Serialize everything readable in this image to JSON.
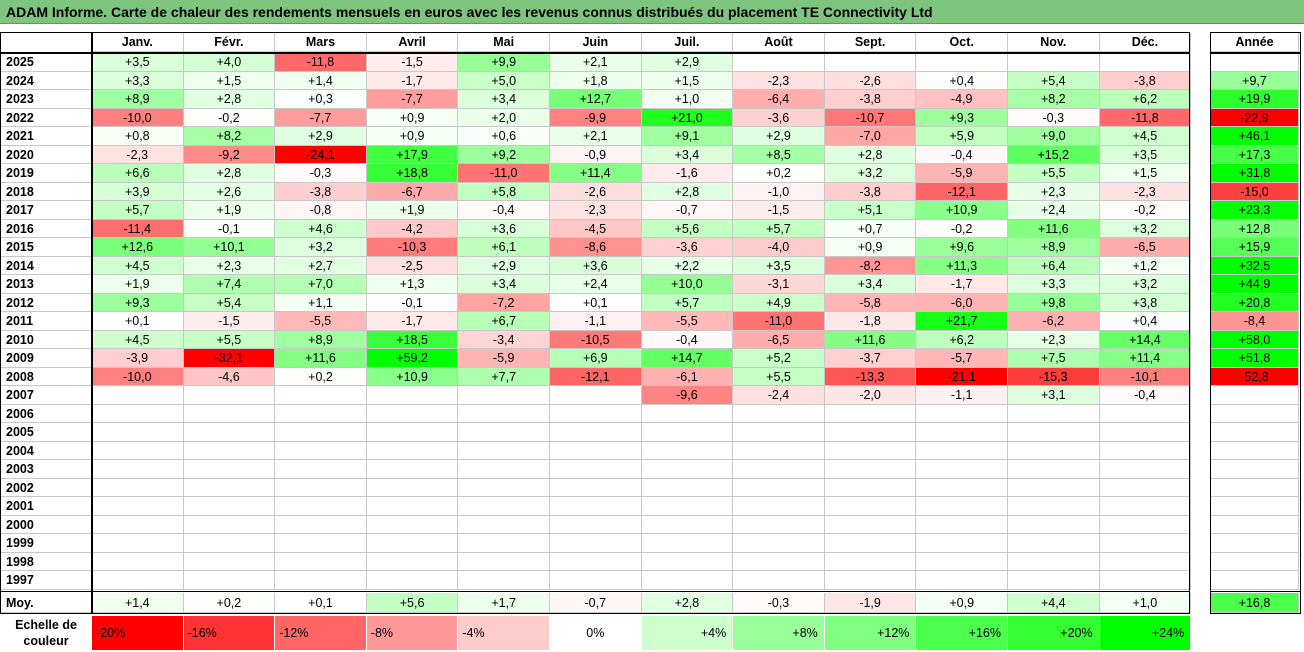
{
  "title": "ADAM Informe. Carte de chaleur des rendements mensuels en euros avec les revenus connus distribués du placement TE Connectivity Ltd",
  "chart_data": {
    "type": "heatmap",
    "title": "ADAM Informe. Carte de chaleur des rendements mensuels en euros avec les revenus connus distribués du placement TE Connectivity Ltd",
    "months": [
      "Janv.",
      "Févr.",
      "Mars",
      "Avril",
      "Mai",
      "Juin",
      "Juil.",
      "Août",
      "Sept.",
      "Oct.",
      "Nov.",
      "Déc."
    ],
    "year_header": "Année",
    "rows": [
      {
        "year": "2025",
        "values": [
          "+3,5",
          "+4,0",
          "-11,8",
          "-1,5",
          "+9,9",
          "+2,1",
          "+2,9",
          "",
          "",
          "",
          "",
          ""
        ],
        "annual": ""
      },
      {
        "year": "2024",
        "values": [
          "+3,3",
          "+1,5",
          "+1,4",
          "-1,7",
          "+5,0",
          "+1,8",
          "+1,5",
          "-2,3",
          "-2,6",
          "+0,4",
          "+5,4",
          "-3,8"
        ],
        "annual": "+9,7"
      },
      {
        "year": "2023",
        "values": [
          "+8,9",
          "+2,8",
          "+0,3",
          "-7,7",
          "+3,4",
          "+12,7",
          "+1,0",
          "-6,4",
          "-3,8",
          "-4,9",
          "+8,2",
          "+6,2"
        ],
        "annual": "+19,9"
      },
      {
        "year": "2022",
        "values": [
          "-10,0",
          "-0,2",
          "-7,7",
          "+0,9",
          "+2,0",
          "-9,9",
          "+21,0",
          "-3,6",
          "-10,7",
          "+9,3",
          "-0,3",
          "-11,8"
        ],
        "annual": "-22,9"
      },
      {
        "year": "2021",
        "values": [
          "+0,8",
          "+8,2",
          "+2,9",
          "+0,9",
          "+0,6",
          "+2,1",
          "+9,1",
          "+2,9",
          "-7,0",
          "+5,9",
          "+9,0",
          "+4,5"
        ],
        "annual": "+46,1"
      },
      {
        "year": "2020",
        "values": [
          "-2,3",
          "-9,2",
          "-24,1",
          "+17,9",
          "+9,2",
          "-0,9",
          "+3,4",
          "+8,5",
          "+2,8",
          "-0,4",
          "+15,2",
          "+3,5"
        ],
        "annual": "+17,3"
      },
      {
        "year": "2019",
        "values": [
          "+6,6",
          "+2,8",
          "-0,3",
          "+18,8",
          "-11,0",
          "+11,4",
          "-1,6",
          "+0,2",
          "+3,2",
          "-5,9",
          "+5,5",
          "+1,5"
        ],
        "annual": "+31,8"
      },
      {
        "year": "2018",
        "values": [
          "+3,9",
          "+2,6",
          "-3,8",
          "-6,7",
          "+5,8",
          "-2,6",
          "+2,8",
          "-1,0",
          "-3,8",
          "-12,1",
          "+2,3",
          "-2,3"
        ],
        "annual": "-15,0"
      },
      {
        "year": "2017",
        "values": [
          "+5,7",
          "+1,9",
          "-0,8",
          "+1,9",
          "-0,4",
          "-2,3",
          "-0,7",
          "-1,5",
          "+5,1",
          "+10,9",
          "+2,4",
          "-0,2"
        ],
        "annual": "+23,3"
      },
      {
        "year": "2016",
        "values": [
          "-11,4",
          "-0,1",
          "+4,6",
          "-4,2",
          "+3,6",
          "-4,5",
          "+5,6",
          "+5,7",
          "+0,7",
          "-0,2",
          "+11,6",
          "+3,2"
        ],
        "annual": "+12,8"
      },
      {
        "year": "2015",
        "values": [
          "+12,6",
          "+10,1",
          "+3,2",
          "-10,3",
          "+6,1",
          "-8,6",
          "-3,6",
          "-4,0",
          "+0,9",
          "+9,6",
          "+8,9",
          "-6,5"
        ],
        "annual": "+15,9"
      },
      {
        "year": "2014",
        "values": [
          "+4,5",
          "+2,3",
          "+2,7",
          "-2,5",
          "+2,9",
          "+3,6",
          "+2,2",
          "+3,5",
          "-8,2",
          "+11,3",
          "+6,4",
          "+1,2"
        ],
        "annual": "+32,5"
      },
      {
        "year": "2013",
        "values": [
          "+1,9",
          "+7,4",
          "+7,0",
          "+1,3",
          "+3,4",
          "+2,4",
          "+10,0",
          "-3,1",
          "+3,4",
          "-1,7",
          "+3,3",
          "+3,2"
        ],
        "annual": "+44,9"
      },
      {
        "year": "2012",
        "values": [
          "+9,3",
          "+5,4",
          "+1,1",
          "-0,1",
          "-7,2",
          "+0,1",
          "+5,7",
          "+4,9",
          "-5,8",
          "-6,0",
          "+9,8",
          "+3,8"
        ],
        "annual": "+20,8"
      },
      {
        "year": "2011",
        "values": [
          "+0,1",
          "-1,5",
          "-5,5",
          "-1,7",
          "+6,7",
          "-1,1",
          "-5,5",
          "-11,0",
          "-1,8",
          "+21,7",
          "-6,2",
          "+0,4"
        ],
        "annual": "-8,4"
      },
      {
        "year": "2010",
        "values": [
          "+4,5",
          "+5,5",
          "+8,9",
          "+18,5",
          "-3,4",
          "-10,5",
          "-0,4",
          "-6,5",
          "+11,6",
          "+6,2",
          "+2,3",
          "+14,4"
        ],
        "annual": "+58,0"
      },
      {
        "year": "2009",
        "values": [
          "-3,9",
          "-32,1",
          "+11,6",
          "+59,2",
          "-5,9",
          "+6,9",
          "+14,7",
          "+5,2",
          "-3,7",
          "-5,7",
          "+7,5",
          "+11,4"
        ],
        "annual": "+51,8"
      },
      {
        "year": "2008",
        "values": [
          "-10,0",
          "-4,6",
          "+0,2",
          "+10,9",
          "+7,7",
          "-12,1",
          "-6,1",
          "+5,5",
          "-13,3",
          "-21,1",
          "-15,3",
          "-10,1"
        ],
        "annual": "-52,8"
      },
      {
        "year": "2007",
        "values": [
          "",
          "",
          "",
          "",
          "",
          "",
          "-9,6",
          "-2,4",
          "-2,0",
          "-1,1",
          "+3,1",
          "-0,4"
        ],
        "annual": ""
      },
      {
        "year": "2006",
        "values": [
          "",
          "",
          "",
          "",
          "",
          "",
          "",
          "",
          "",
          "",
          "",
          ""
        ],
        "annual": ""
      },
      {
        "year": "2005",
        "values": [
          "",
          "",
          "",
          "",
          "",
          "",
          "",
          "",
          "",
          "",
          "",
          ""
        ],
        "annual": ""
      },
      {
        "year": "2004",
        "values": [
          "",
          "",
          "",
          "",
          "",
          "",
          "",
          "",
          "",
          "",
          "",
          ""
        ],
        "annual": ""
      },
      {
        "year": "2003",
        "values": [
          "",
          "",
          "",
          "",
          "",
          "",
          "",
          "",
          "",
          "",
          "",
          ""
        ],
        "annual": ""
      },
      {
        "year": "2002",
        "values": [
          "",
          "",
          "",
          "",
          "",
          "",
          "",
          "",
          "",
          "",
          "",
          ""
        ],
        "annual": ""
      },
      {
        "year": "2001",
        "values": [
          "",
          "",
          "",
          "",
          "",
          "",
          "",
          "",
          "",
          "",
          "",
          ""
        ],
        "annual": ""
      },
      {
        "year": "2000",
        "values": [
          "",
          "",
          "",
          "",
          "",
          "",
          "",
          "",
          "",
          "",
          "",
          ""
        ],
        "annual": ""
      },
      {
        "year": "1999",
        "values": [
          "",
          "",
          "",
          "",
          "",
          "",
          "",
          "",
          "",
          "",
          "",
          ""
        ],
        "annual": ""
      },
      {
        "year": "1998",
        "values": [
          "",
          "",
          "",
          "",
          "",
          "",
          "",
          "",
          "",
          "",
          "",
          ""
        ],
        "annual": ""
      },
      {
        "year": "1997",
        "values": [
          "",
          "",
          "",
          "",
          "",
          "",
          "",
          "",
          "",
          "",
          "",
          ""
        ],
        "annual": ""
      }
    ],
    "average": {
      "label": "Moy.",
      "values": [
        "+1,4",
        "+0,2",
        "+0,1",
        "+5,6",
        "+1,7",
        "-0,7",
        "+2,8",
        "-0,3",
        "-1,9",
        "+0,9",
        "+4,4",
        "+1,0"
      ],
      "annual": "+16,8"
    },
    "color_scale": {
      "label": "Echelle de couleur",
      "steps": [
        {
          "label": "-20%",
          "value": -20,
          "color": "#ff0000"
        },
        {
          "label": "-16%",
          "value": -16,
          "color": "#ff3333"
        },
        {
          "label": "-12%",
          "value": -12,
          "color": "#ff6666"
        },
        {
          "label": "-8%",
          "value": -8,
          "color": "#ff9999"
        },
        {
          "label": "-4%",
          "value": -4,
          "color": "#ffcccc"
        },
        {
          "label": "0%",
          "value": 0,
          "color": "#ffffff"
        },
        {
          "label": "+4%",
          "value": 4,
          "color": "#ccffcc"
        },
        {
          "label": "+8%",
          "value": 8,
          "color": "#99ff99"
        },
        {
          "label": "+12%",
          "value": 12,
          "color": "#80ff80"
        },
        {
          "label": "+16%",
          "value": 16,
          "color": "#4dff4d"
        },
        {
          "label": "+20%",
          "value": 20,
          "color": "#33ff33"
        },
        {
          "label": "+24%",
          "value": 24,
          "color": "#00ff00"
        }
      ]
    }
  }
}
